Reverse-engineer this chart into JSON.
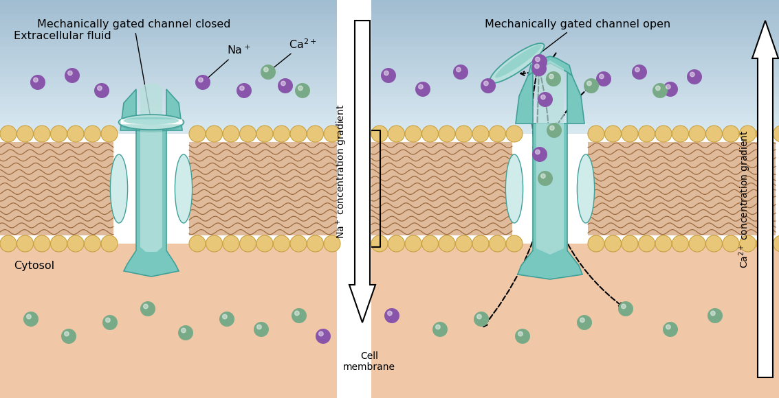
{
  "bg_color": "#ffffff",
  "ecf_top_color": "#c8dde8",
  "ecf_bot_color": "#a8c8d8",
  "cyt_color": "#f0c8a8",
  "bead_color": "#e8c878",
  "bead_edge": "#c8a040",
  "tail_color": "#c07838",
  "tail_dark": "#804818",
  "ch_teal": "#78c8c0",
  "ch_light": "#b8e0dc",
  "ch_lighter": "#d0ecea",
  "ch_dark": "#40a098",
  "petal_color": "#c8e8e4",
  "na_color": "#8855aa",
  "ca_color": "#78aa88",
  "title_left": "Mechanically gated channel closed",
  "title_right": "Mechanically gated channel open",
  "label_ecf": "Extracellular fluid",
  "label_cyt": "Cytosol",
  "label_na_gradient": "Na$^+$ concentration gradient",
  "label_ca_gradient": "Ca$^{2+}$ concentration gradient",
  "label_cell_membrane": "Cell\nmembrane",
  "fig_w": 11.33,
  "fig_h": 5.8,
  "dpi": 100
}
